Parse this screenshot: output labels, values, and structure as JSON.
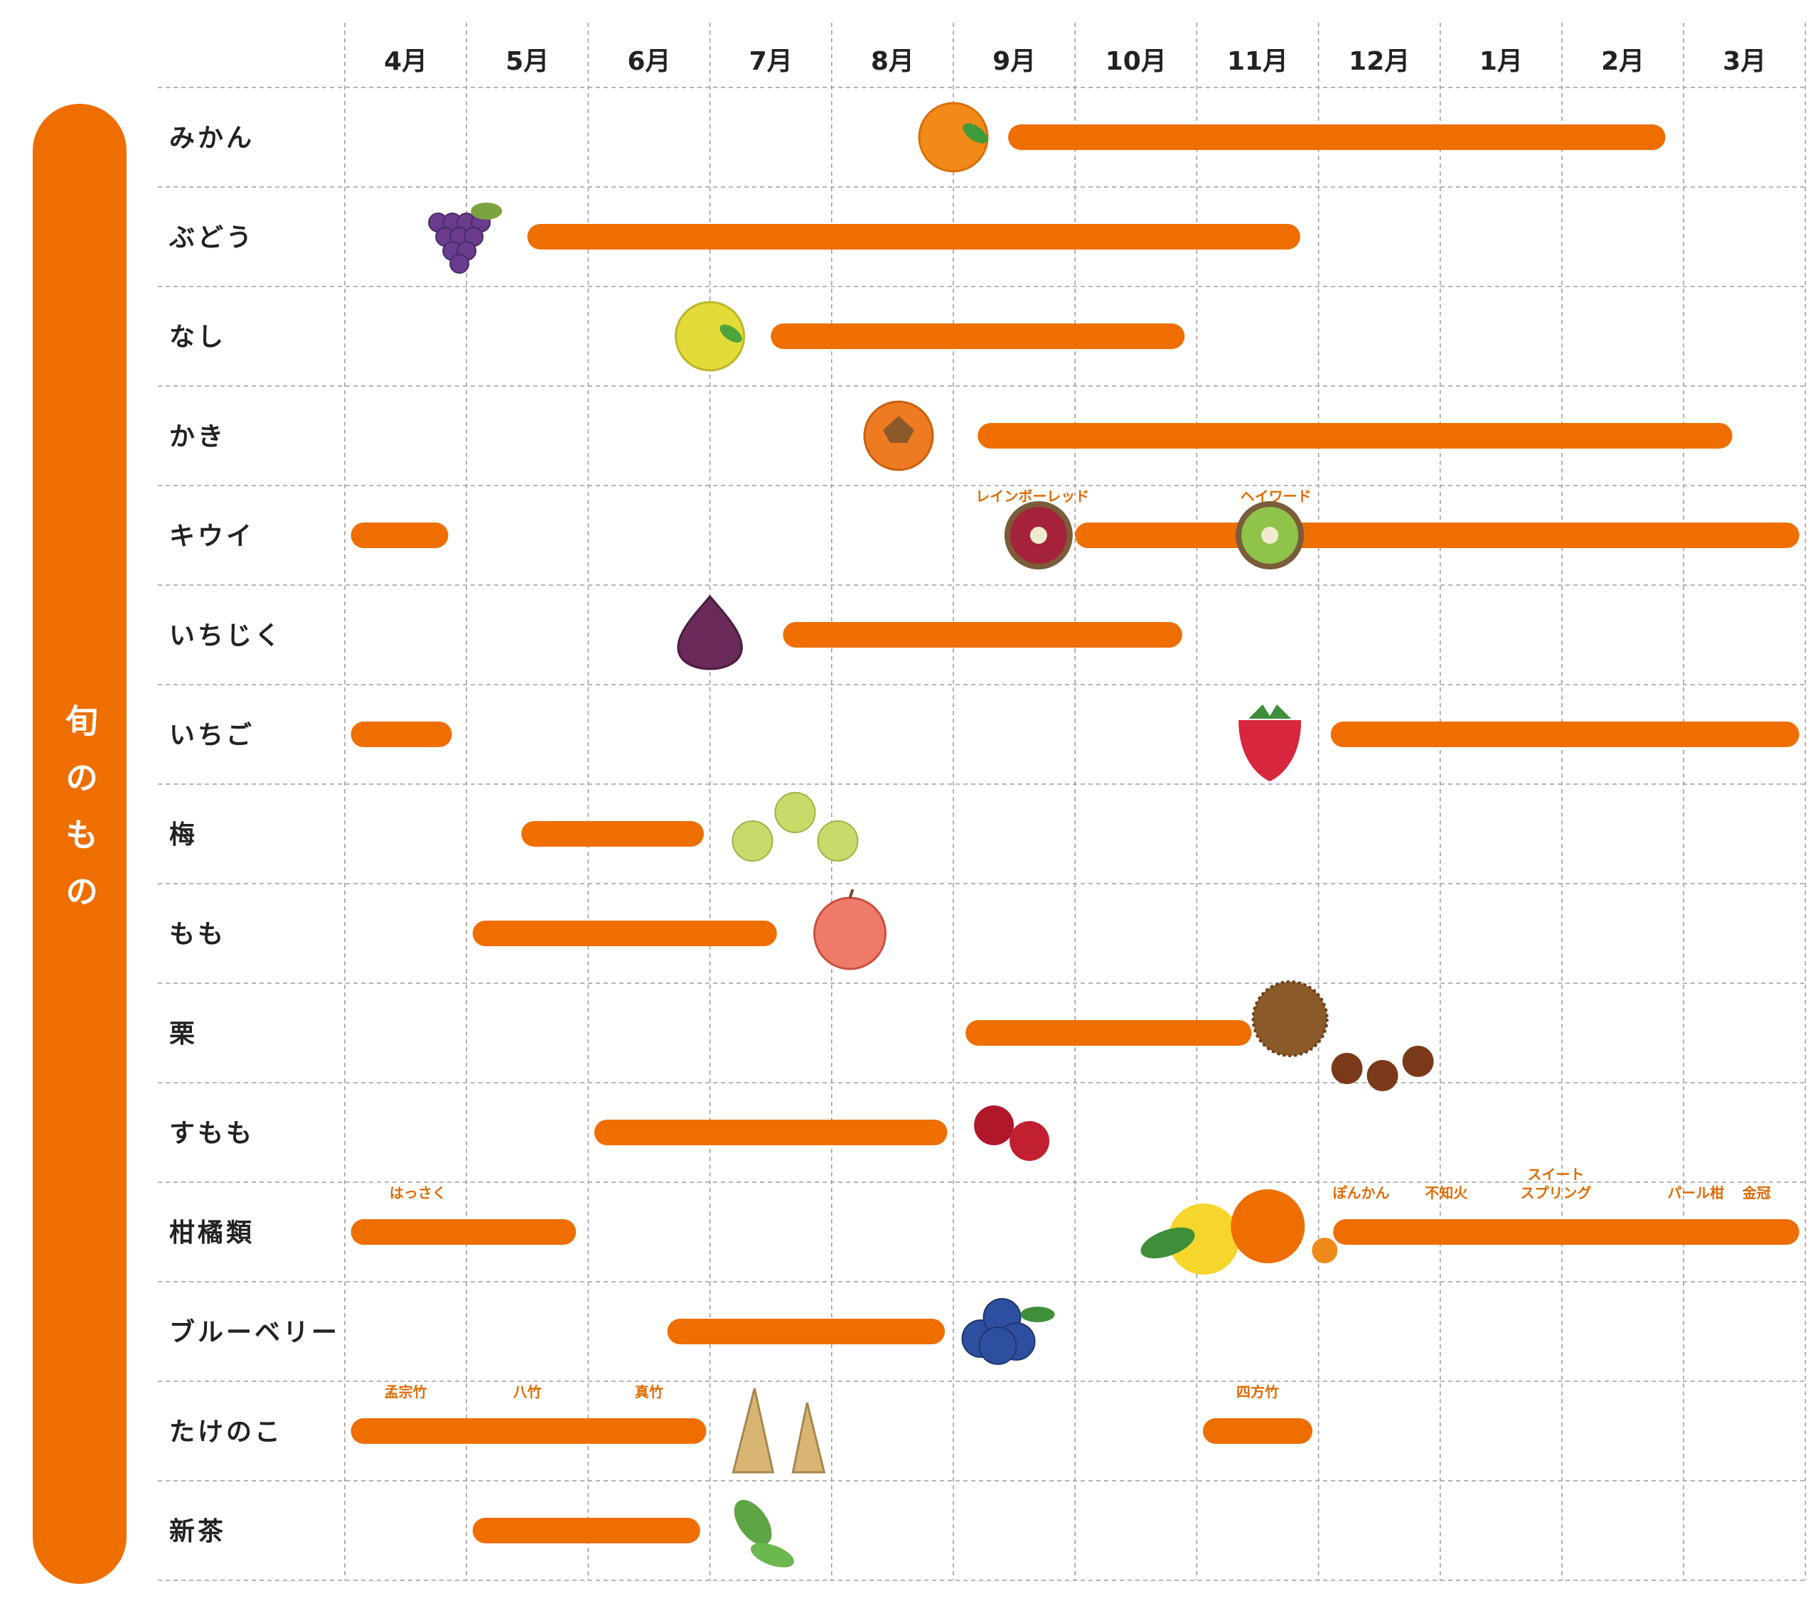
{
  "side_title": "旬のもの",
  "colors": {
    "accent": "#EE6E00",
    "grid": "#9e9e9e",
    "text": "#222222",
    "subtext": "#E06A00"
  },
  "chart_data": {
    "type": "gantt",
    "title": "",
    "x_categories": [
      "4月",
      "5月",
      "6月",
      "7月",
      "8月",
      "9月",
      "10月",
      "11月",
      "12月",
      "1月",
      "2月",
      "3月"
    ],
    "x_unit": "month (4月 = 0 … 3月 = 11)",
    "grid": true,
    "rows": [
      {
        "name": "みかん",
        "icon": "orange-icon",
        "bars": [
          {
            "start": 5.45,
            "end": 10.85
          }
        ],
        "labels": []
      },
      {
        "name": "ぶどう",
        "icon": "grape-icon",
        "bars": [
          {
            "start": 1.5,
            "end": 7.85
          }
        ],
        "labels": []
      },
      {
        "name": "なし",
        "icon": "pear-icon",
        "bars": [
          {
            "start": 3.5,
            "end": 6.9
          }
        ],
        "labels": []
      },
      {
        "name": "かき",
        "icon": "persimmon-icon",
        "bars": [
          {
            "start": 5.2,
            "end": 11.4
          }
        ],
        "labels": []
      },
      {
        "name": "キウイ",
        "icon": "kiwi-icon",
        "bars": [
          {
            "start": 0.05,
            "end": 0.85
          },
          {
            "start": 6.0,
            "end": 11.95
          }
        ],
        "labels": [
          {
            "text": "レインボーレッド",
            "at": 5.65
          },
          {
            "text": "ヘイワード",
            "at": 7.65
          }
        ]
      },
      {
        "name": "いちじく",
        "icon": "fig-icon",
        "bars": [
          {
            "start": 3.6,
            "end": 6.88
          }
        ],
        "labels": []
      },
      {
        "name": "いちご",
        "icon": "strawberry-icon",
        "bars": [
          {
            "start": 0.05,
            "end": 0.88
          },
          {
            "start": 8.1,
            "end": 11.95
          }
        ],
        "labels": []
      },
      {
        "name": "梅",
        "icon": "ume-icon",
        "bars": [
          {
            "start": 1.45,
            "end": 2.95
          }
        ],
        "labels": []
      },
      {
        "name": "もも",
        "icon": "peach-icon",
        "bars": [
          {
            "start": 1.05,
            "end": 3.55
          }
        ],
        "labels": []
      },
      {
        "name": "栗",
        "icon": "chestnut-icon",
        "bars": [
          {
            "start": 5.1,
            "end": 7.45
          }
        ],
        "labels": []
      },
      {
        "name": "すもも",
        "icon": "plum-icon",
        "bars": [
          {
            "start": 2.05,
            "end": 4.95
          }
        ],
        "labels": []
      },
      {
        "name": "柑橘類",
        "icon": "citrus-icon",
        "bars": [
          {
            "start": 0.05,
            "end": 1.9
          },
          {
            "start": 8.12,
            "end": 11.95
          }
        ],
        "labels": [
          {
            "text": "はっさく",
            "at": 0.6
          },
          {
            "text": "ぽんかん",
            "at": 8.35
          },
          {
            "text": "不知火",
            "at": 9.05
          },
          {
            "text": "スイート\nスプリング",
            "at": 9.95
          },
          {
            "text": "パール柑",
            "at": 11.1
          },
          {
            "text": "金冠",
            "at": 11.6
          }
        ]
      },
      {
        "name": "ブルーベリー",
        "icon": "blueberry-icon",
        "bars": [
          {
            "start": 2.65,
            "end": 4.93
          }
        ],
        "labels": []
      },
      {
        "name": "たけのこ",
        "icon": "bamboo-shoot-icon",
        "bars": [
          {
            "start": 0.05,
            "end": 2.97
          },
          {
            "start": 7.05,
            "end": 7.95
          }
        ],
        "labels": [
          {
            "text": "孟宗竹",
            "at": 0.5
          },
          {
            "text": "八竹",
            "at": 1.5
          },
          {
            "text": "真竹",
            "at": 2.5
          },
          {
            "text": "四方竹",
            "at": 7.5
          }
        ]
      },
      {
        "name": "新茶",
        "icon": "tea-leaf-icon",
        "bars": [
          {
            "start": 1.05,
            "end": 2.92
          }
        ],
        "labels": []
      }
    ]
  }
}
